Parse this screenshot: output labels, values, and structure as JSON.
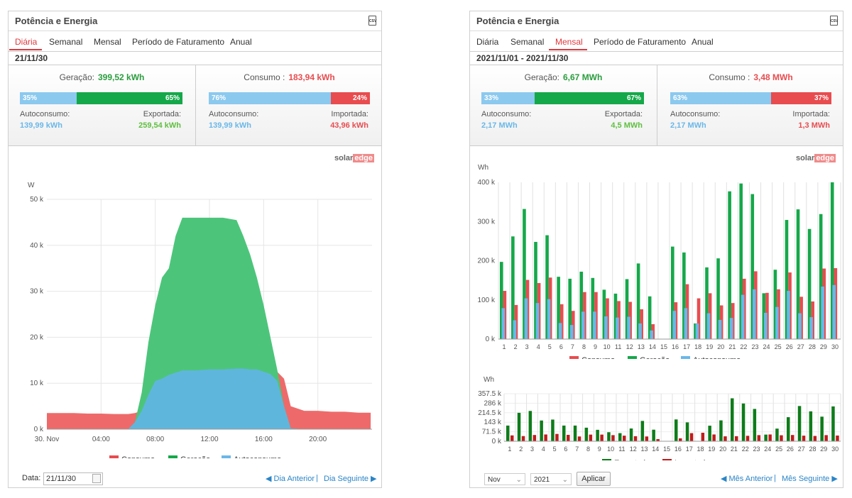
{
  "left": {
    "title": "Potência e Energia",
    "csv_icon": "csv-icon",
    "csv_text": "CSV",
    "tabs": [
      "Diária",
      "Semanal",
      "Mensal",
      "Período de Faturamento",
      "Anual"
    ],
    "active_tab": "Diária",
    "date": "21/11/30",
    "generation": {
      "label": "Geração:",
      "value": "399,52 kWh",
      "self_pct": "35%",
      "export_pct": "65%",
      "self_label": "Autoconsumo:",
      "self_value": "139,99 kWh",
      "export_label": "Exportada:",
      "export_value": "259,54 kWh"
    },
    "consumption": {
      "label": "Consumo :",
      "value": "183,94 kWh",
      "self_pct": "76%",
      "import_pct": "24%",
      "self_label": "Autoconsumo:",
      "self_value": "139,99 kWh",
      "import_label": "Importada:",
      "import_value": "43,96 kWh"
    },
    "logo": {
      "a": "solar",
      "b": "edge"
    },
    "footer": {
      "date_label": "Data:",
      "date_value": "21/11/30",
      "prev": "Dia Anterior",
      "separator": "|",
      "next": "Dia Seguinte"
    }
  },
  "right": {
    "title": "Potência e Energia",
    "csv_icon": "csv-icon",
    "csv_text": "CSV",
    "tabs": [
      "Diária",
      "Semanal",
      "Mensal",
      "Período de Faturamento",
      "Anual"
    ],
    "active_tab": "Mensal",
    "date": "2021/11/01 - 2021/11/30",
    "generation": {
      "label": "Geração:",
      "value": "6,67 MWh",
      "self_pct": "33%",
      "export_pct": "67%",
      "self_label": "Autoconsumo:",
      "self_value": "2,17 MWh",
      "export_label": "Exportada:",
      "export_value": "4,5 MWh"
    },
    "consumption": {
      "label": "Consumo :",
      "value": "3,48 MWh",
      "self_pct": "63%",
      "import_pct": "37%",
      "self_label": "Autoconsumo:",
      "self_value": "2,17 MWh",
      "import_label": "Importada:",
      "import_value": "1,3 MWh"
    },
    "logo": {
      "a": "solar",
      "b": "edge"
    },
    "footer": {
      "month": "Nov",
      "year": "2021",
      "apply": "Aplicar",
      "prev": "Mês Anterior",
      "separator": "|",
      "next": "Mês Seguinte"
    }
  },
  "colors": {
    "consumo": "#e84c4f",
    "geracao": "#15a84a",
    "autoconsumo": "#6ab7e8",
    "exportada": "#0e7c1a",
    "importada": "#c01c1c",
    "area_geracao": "#4cc57a",
    "area_consumo": "#ee6a6a",
    "area_auto": "#5fb6dc"
  },
  "chart_data": [
    {
      "type": "area",
      "ylabel": "W",
      "ylim": [
        0,
        50000
      ],
      "yticks": [
        "0 k",
        "10 k",
        "20 k",
        "30 k",
        "40 k",
        "50 k"
      ],
      "xticks": [
        "30. Nov",
        "04:00",
        "08:00",
        "12:00",
        "16:00",
        "20:00"
      ],
      "x_hours": [
        0,
        1,
        2,
        3,
        4,
        5,
        5.5,
        6,
        6.5,
        7,
        7.5,
        8,
        8.5,
        9,
        9.5,
        10,
        11,
        12,
        13,
        14,
        14.5,
        15,
        15.5,
        16,
        16.5,
        17,
        17.5,
        18,
        19,
        20,
        21,
        22,
        23,
        23.9
      ],
      "series": [
        {
          "name": "Consumo",
          "values": [
            3500,
            3500,
            3500,
            3400,
            3400,
            3300,
            3300,
            3300,
            3500,
            4000,
            8000,
            11000,
            11500,
            12000,
            12500,
            13000,
            13000,
            13000,
            13000,
            13000,
            13000,
            13000,
            13000,
            13000,
            13000,
            12500,
            11000,
            5000,
            4000,
            4000,
            3800,
            3800,
            3600,
            3600
          ]
        },
        {
          "name": "Geração",
          "values": [
            0,
            0,
            0,
            0,
            0,
            0,
            0,
            0,
            1500,
            8000,
            19000,
            27000,
            33000,
            35000,
            42000,
            46000,
            46000,
            46000,
            46000,
            45500,
            42000,
            38000,
            33000,
            27000,
            20000,
            13000,
            5000,
            200,
            0,
            0,
            0,
            0,
            0,
            0
          ]
        },
        {
          "name": "Autoconsumo",
          "values": [
            0,
            0,
            0,
            0,
            0,
            0,
            0,
            0,
            1500,
            4000,
            7500,
            10500,
            11000,
            11800,
            12300,
            12800,
            12800,
            13000,
            13000,
            13200,
            13200,
            13000,
            13000,
            12500,
            12000,
            10500,
            5000,
            200,
            0,
            0,
            0,
            0,
            0,
            0
          ]
        }
      ],
      "legend": [
        "Consumo",
        "Geração",
        "Autoconsumo"
      ],
      "legend_position": "bottom"
    },
    {
      "type": "bar",
      "ylabel": "Wh",
      "ylim": [
        0,
        400000
      ],
      "yticks": [
        "0 k",
        "100 k",
        "200 k",
        "300 k",
        "400 k"
      ],
      "categories": [
        "1",
        "2",
        "3",
        "4",
        "5",
        "6",
        "7",
        "8",
        "9",
        "10",
        "11",
        "12",
        "13",
        "14",
        "15",
        "16",
        "17",
        "18",
        "19",
        "20",
        "21",
        "22",
        "23",
        "24",
        "25",
        "26",
        "27",
        "28",
        "29",
        "30"
      ],
      "series": [
        {
          "name": "Consumo",
          "values": [
            123000,
            87000,
            151000,
            143000,
            157000,
            89000,
            72000,
            120000,
            120000,
            104000,
            97000,
            95000,
            76000,
            38000,
            0,
            94000,
            140000,
            104000,
            117000,
            86000,
            92000,
            154000,
            173000,
            118000,
            127000,
            170000,
            108000,
            96000,
            180000,
            181000
          ]
        },
        {
          "name": "Geração",
          "values": [
            197000,
            262000,
            332000,
            248000,
            265000,
            159000,
            154000,
            172000,
            156000,
            126000,
            116000,
            153000,
            193000,
            109000,
            0,
            236000,
            221000,
            40000,
            183000,
            206000,
            377000,
            397000,
            370000,
            117000,
            177000,
            304000,
            331000,
            281000,
            319000,
            400000
          ]
        },
        {
          "name": "Autoconsumo",
          "values": [
            79000,
            48000,
            104000,
            92000,
            102000,
            41000,
            36000,
            70000,
            70000,
            58000,
            55000,
            57000,
            40000,
            22000,
            0,
            72000,
            79000,
            40000,
            66000,
            49000,
            54000,
            113000,
            127000,
            67000,
            82000,
            123000,
            66000,
            56000,
            134000,
            138000
          ]
        }
      ],
      "legend": [
        "Consumo",
        "Geração",
        "Autoconsumo"
      ],
      "legend_position": "bottom"
    },
    {
      "type": "bar",
      "ylabel": "Wh",
      "ylim": [
        0,
        357500
      ],
      "yticks": [
        "0 k",
        "71.5 k",
        "143 k",
        "214.5 k",
        "286 k",
        "357.5 k"
      ],
      "categories": [
        "1",
        "2",
        "3",
        "4",
        "5",
        "6",
        "7",
        "8",
        "9",
        "10",
        "11",
        "12",
        "13",
        "14",
        "15",
        "16",
        "17",
        "18",
        "19",
        "20",
        "21",
        "22",
        "23",
        "24",
        "25",
        "26",
        "27",
        "28",
        "29",
        "30"
      ],
      "series": [
        {
          "name": "Exportada",
          "values": [
            118000,
            214000,
            228000,
            156000,
            163000,
            118000,
            118000,
            102000,
            86000,
            68000,
            61000,
            96000,
            153000,
            87000,
            0,
            164000,
            142000,
            0,
            117000,
            157000,
            323000,
            284000,
            243000,
            50000,
            95000,
            181000,
            265000,
            225000,
            185000,
            262000
          ]
        },
        {
          "name": "Importada",
          "values": [
            44000,
            39000,
            47000,
            51000,
            55000,
            48000,
            36000,
            50000,
            50000,
            46000,
            42000,
            38000,
            36000,
            16000,
            0,
            22000,
            61000,
            64000,
            51000,
            37000,
            38000,
            41000,
            46000,
            51000,
            45000,
            47000,
            42000,
            40000,
            46000,
            43000
          ]
        }
      ],
      "legend": [
        "Exportada",
        "Importada"
      ],
      "legend_position": "bottom"
    }
  ]
}
